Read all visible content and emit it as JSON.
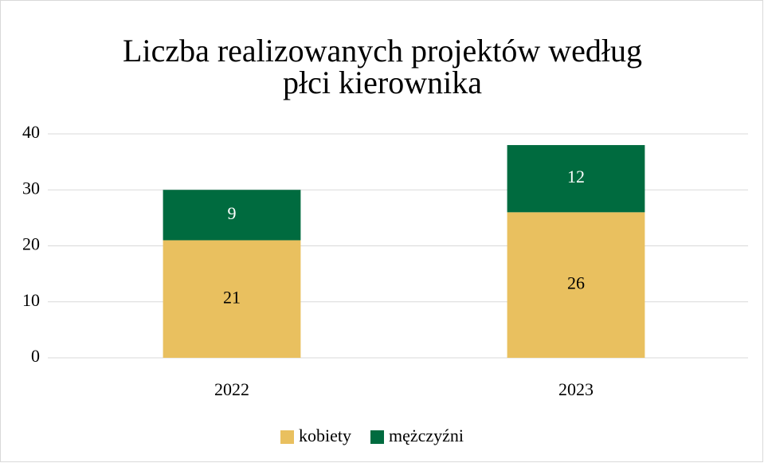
{
  "chart_data": {
    "type": "stacked_bar",
    "title": "Liczba realizowanych projektów według płci kierownika",
    "categories": [
      "2022",
      "2023"
    ],
    "series": [
      {
        "name": "kobiety",
        "color": "#e9c05f",
        "values": [
          21,
          26
        ]
      },
      {
        "name": "mężczyźni",
        "color": "#006b3f",
        "values": [
          9,
          12
        ]
      }
    ],
    "ylim": [
      0,
      40
    ],
    "yticks": [
      0,
      10,
      20,
      30,
      40
    ],
    "grid": true,
    "legend": "bottom"
  }
}
